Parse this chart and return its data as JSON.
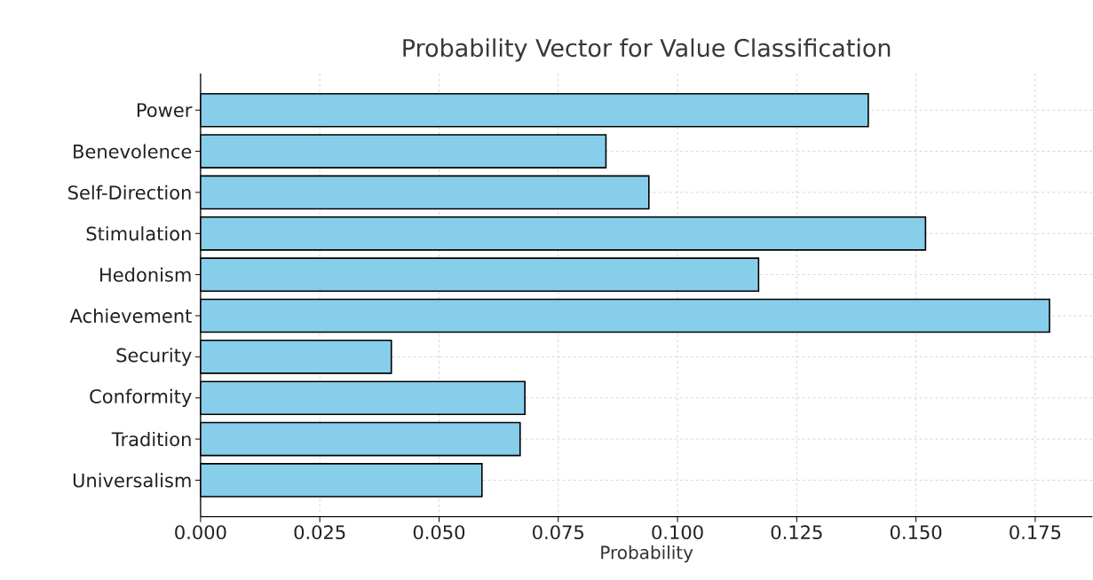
{
  "chart_data": {
    "type": "bar",
    "orientation": "horizontal",
    "title": "Probability Vector for Value Classification",
    "xlabel": "Probability",
    "categories": [
      "Power",
      "Benevolence",
      "Self-Direction",
      "Stimulation",
      "Hedonism",
      "Achievement",
      "Security",
      "Conformity",
      "Tradition",
      "Universalism"
    ],
    "values": [
      0.14,
      0.085,
      0.094,
      0.152,
      0.117,
      0.178,
      0.04,
      0.068,
      0.067,
      0.059
    ],
    "color": "#87ceeb",
    "xlim": [
      0,
      0.187
    ],
    "xticks": [
      {
        "value": 0,
        "label": "0.000"
      },
      {
        "value": 0.025,
        "label": "0.025"
      },
      {
        "value": 0.05,
        "label": "0.050"
      },
      {
        "value": 0.075,
        "label": "0.075"
      },
      {
        "value": 0.1,
        "label": "0.100"
      },
      {
        "value": 0.125,
        "label": "0.125"
      },
      {
        "value": 0.15,
        "label": "0.150"
      },
      {
        "value": 0.175,
        "label": "0.175"
      }
    ],
    "grid": true,
    "line_style": "dashed"
  }
}
